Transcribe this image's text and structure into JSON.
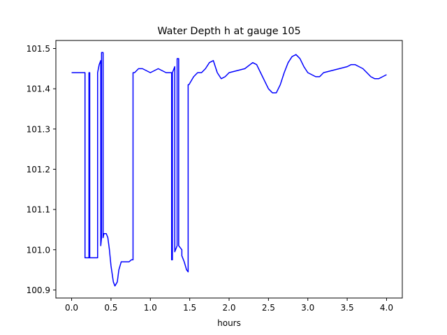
{
  "chart_data": {
    "type": "line",
    "title": "Water Depth h at gauge 105",
    "xlabel": "hours",
    "ylabel": "",
    "xlim": [
      -0.2,
      4.2
    ],
    "ylim": [
      100.88,
      101.52
    ],
    "xticks": [
      0.0,
      0.5,
      1.0,
      1.5,
      2.0,
      2.5,
      3.0,
      3.5,
      4.0
    ],
    "xtick_labels": [
      "0.0",
      "0.5",
      "1.0",
      "1.5",
      "2.0",
      "2.5",
      "3.0",
      "3.5",
      "4.0"
    ],
    "yticks": [
      100.9,
      101.0,
      101.1,
      101.2,
      101.3,
      101.4,
      101.5
    ],
    "ytick_labels": [
      "100.9",
      "101.0",
      "101.1",
      "101.2",
      "101.3",
      "101.4",
      "101.5"
    ],
    "grid": false,
    "legend": "none",
    "series": [
      {
        "color": "#0000ff",
        "x": [
          0.0,
          0.17,
          0.17,
          0.22,
          0.22,
          0.23,
          0.23,
          0.33,
          0.33,
          0.35,
          0.37,
          0.37,
          0.38,
          0.38,
          0.4,
          0.4,
          0.41,
          0.42,
          0.44,
          0.46,
          0.48,
          0.5,
          0.53,
          0.55,
          0.58,
          0.6,
          0.63,
          0.66,
          0.7,
          0.73,
          0.76,
          0.78,
          0.78,
          0.8,
          0.85,
          0.9,
          0.95,
          1.0,
          1.05,
          1.1,
          1.15,
          1.2,
          1.25,
          1.27,
          1.27,
          1.28,
          1.28,
          1.31,
          1.31,
          1.34,
          1.34,
          1.36,
          1.36,
          1.4,
          1.4,
          1.43,
          1.46,
          1.48,
          1.48,
          1.49,
          1.52,
          1.55,
          1.6,
          1.65,
          1.7,
          1.75,
          1.8,
          1.85,
          1.9,
          1.95,
          2.0,
          2.1,
          2.2,
          2.3,
          2.35,
          2.4,
          2.45,
          2.5,
          2.55,
          2.6,
          2.65,
          2.7,
          2.75,
          2.8,
          2.85,
          2.9,
          2.95,
          3.0,
          3.05,
          3.1,
          3.15,
          3.2,
          3.3,
          3.4,
          3.5,
          3.55,
          3.6,
          3.65,
          3.7,
          3.75,
          3.8,
          3.85,
          3.9,
          3.95,
          4.0
        ],
        "y": [
          101.44,
          101.44,
          100.98,
          100.98,
          101.44,
          101.44,
          100.98,
          100.98,
          101.44,
          101.46,
          101.47,
          101.01,
          101.03,
          101.49,
          101.49,
          101.03,
          101.04,
          101.04,
          101.04,
          101.03,
          101.0,
          100.96,
          100.92,
          100.91,
          100.92,
          100.95,
          100.97,
          100.97,
          100.97,
          100.97,
          100.975,
          100.975,
          101.44,
          101.44,
          101.45,
          101.45,
          101.445,
          101.44,
          101.445,
          101.45,
          101.445,
          101.44,
          101.44,
          101.44,
          100.975,
          100.975,
          101.44,
          101.455,
          100.995,
          101.01,
          101.475,
          101.475,
          101.01,
          101.0,
          100.985,
          100.97,
          100.95,
          100.945,
          101.41,
          101.41,
          101.42,
          101.43,
          101.44,
          101.44,
          101.45,
          101.465,
          101.47,
          101.44,
          101.425,
          101.43,
          101.44,
          101.445,
          101.45,
          101.465,
          101.46,
          101.44,
          101.42,
          101.4,
          101.39,
          101.39,
          101.41,
          101.44,
          101.465,
          101.48,
          101.485,
          101.475,
          101.455,
          101.44,
          101.435,
          101.43,
          101.43,
          101.44,
          101.445,
          101.45,
          101.455,
          101.46,
          101.46,
          101.455,
          101.45,
          101.44,
          101.43,
          101.425,
          101.425,
          101.43,
          101.435
        ]
      }
    ]
  }
}
